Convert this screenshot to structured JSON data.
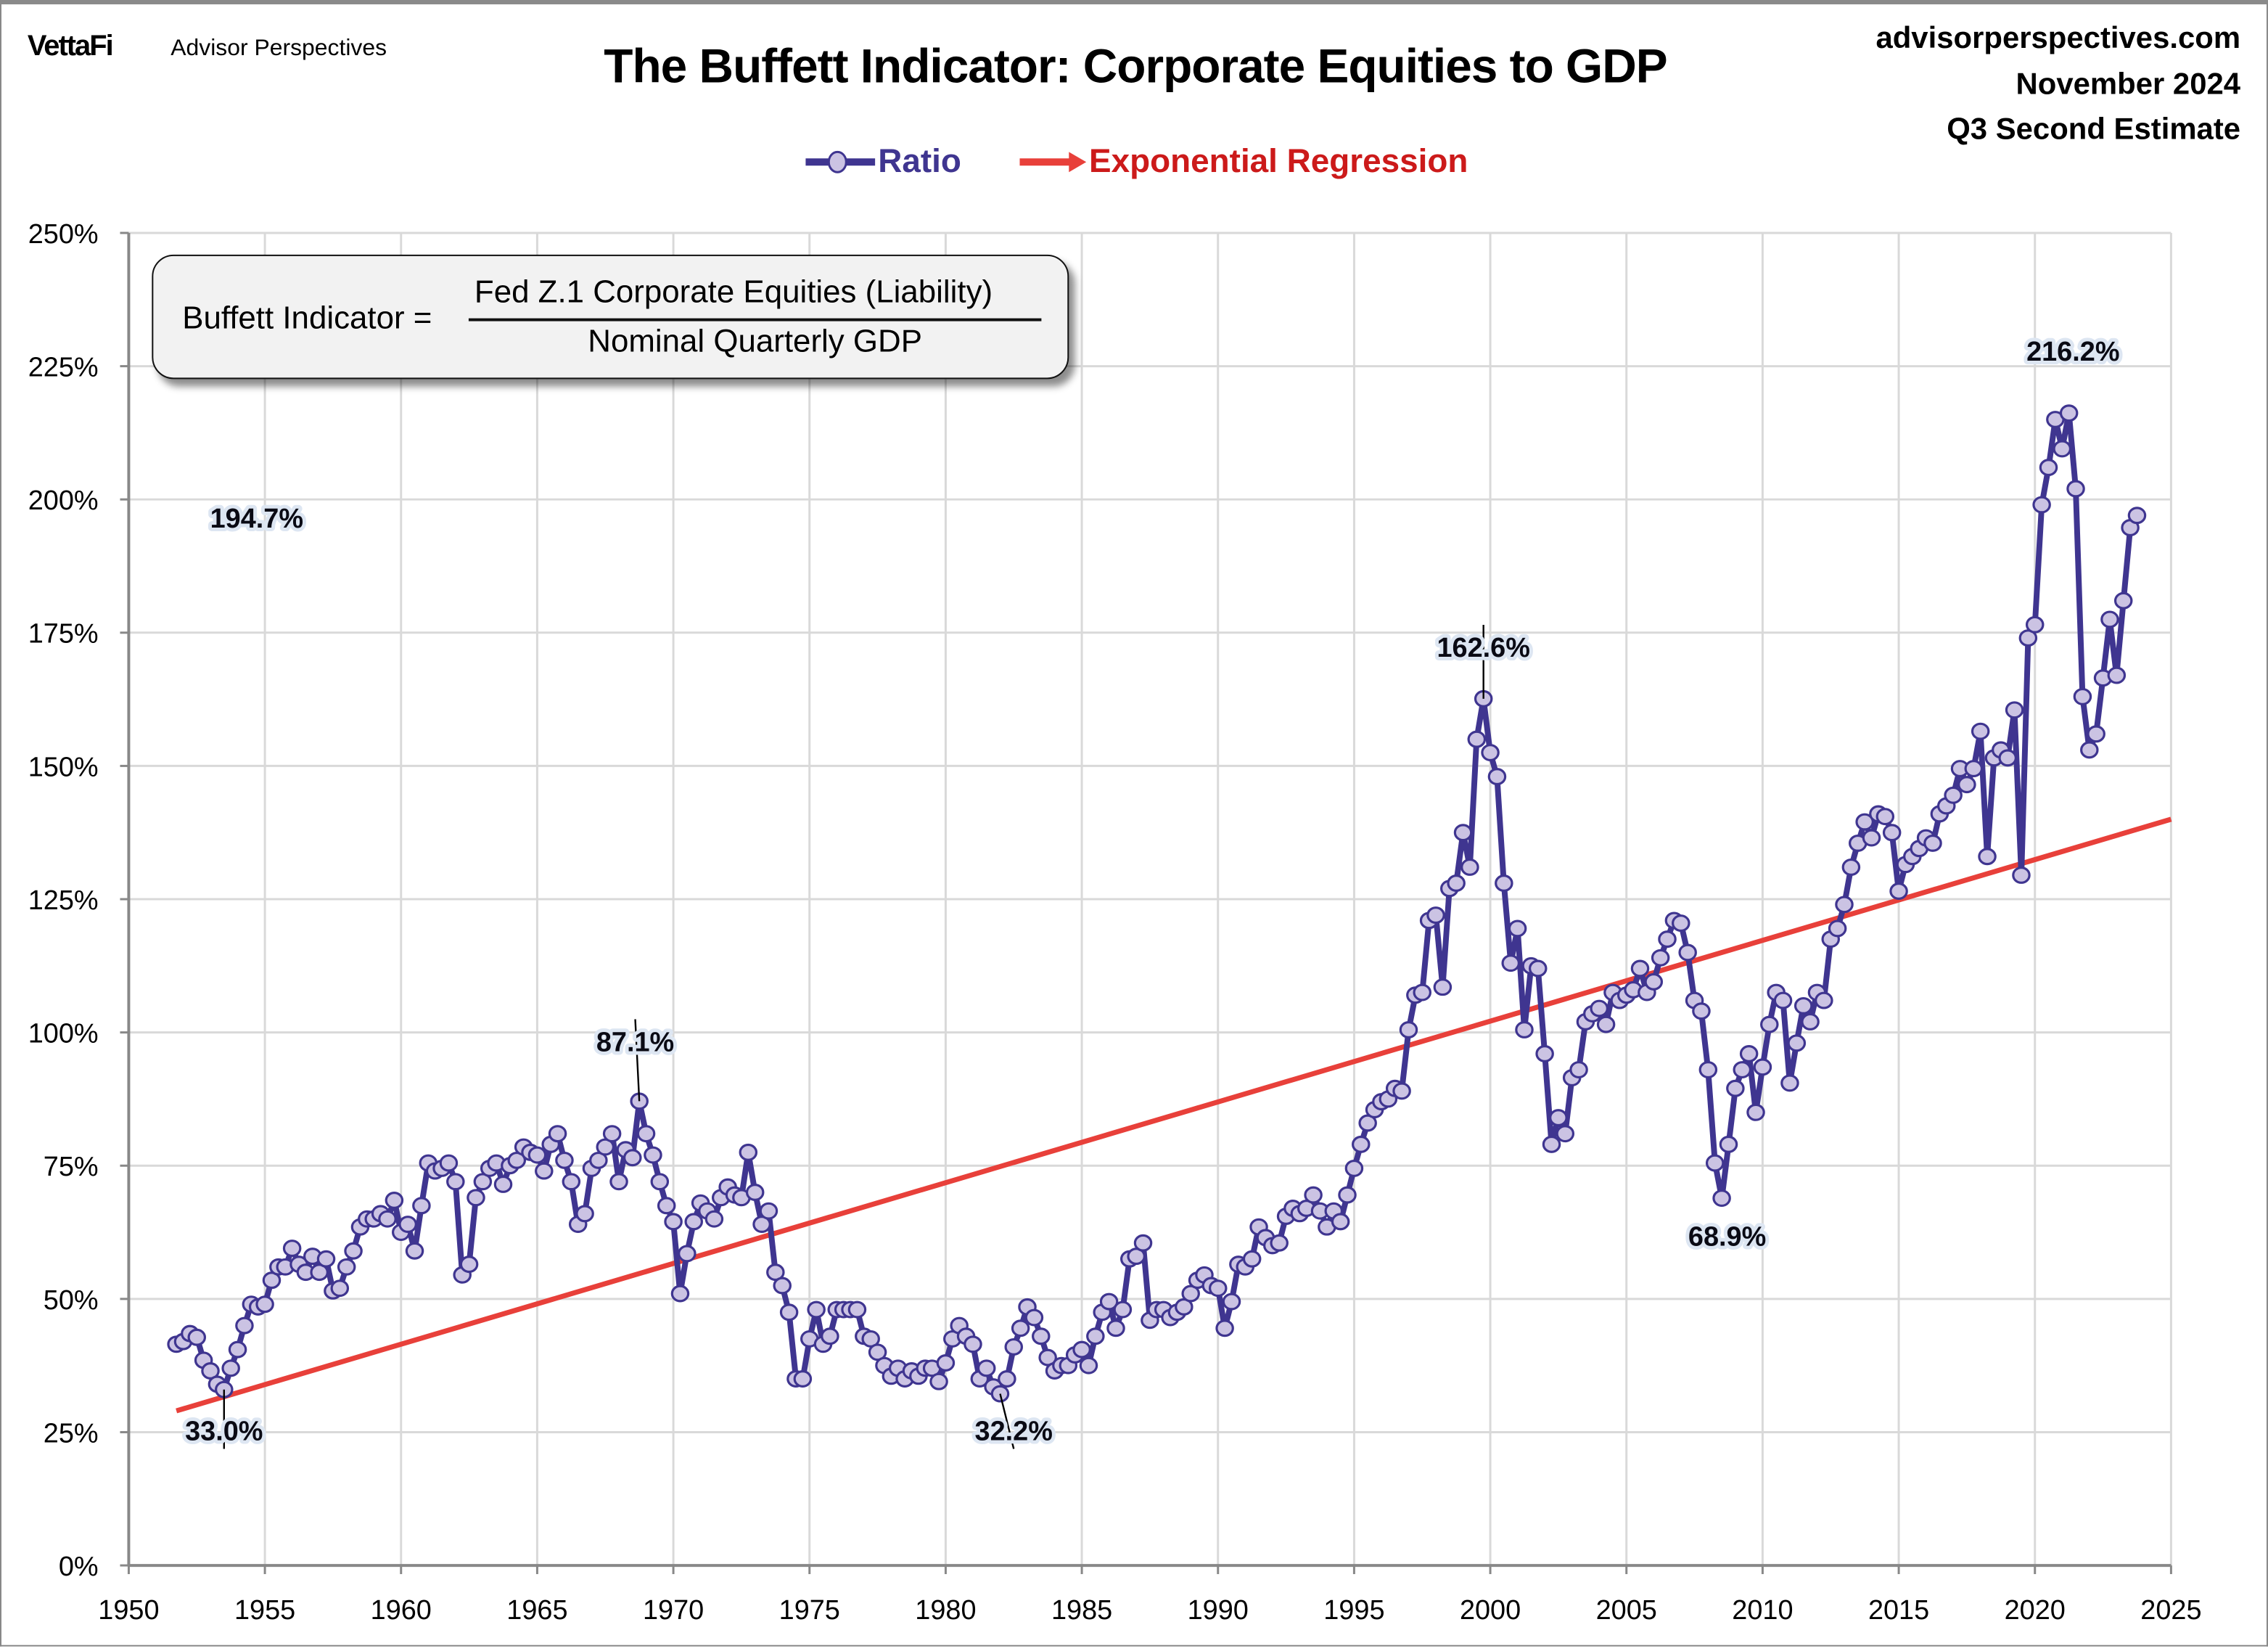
{
  "header": {
    "brand": "VettaFi",
    "brand_sub": "Advisor Perspectives",
    "title": "The Buffett Indicator: Corporate Equities to GDP",
    "site": "advisorperspectives.com",
    "date": "November 2024",
    "estimate": "Q3 Second Estimate"
  },
  "legend": {
    "ratio": "Ratio",
    "regression": "Exponential Regression"
  },
  "formula": {
    "lhs": "Buffett Indicator =",
    "numerator": "Fed Z.1 Corporate Equities (Liability)",
    "denominator": "Nominal Quarterly GDP"
  },
  "colors": {
    "ratio_line": "#3f3590",
    "ratio_marker": "#cbc3e3",
    "regression": "#e8403a",
    "ratio_text": "#3f3590",
    "regression_text": "#cc1a1a"
  },
  "chart_data": {
    "type": "line",
    "title": "The Buffett Indicator: Corporate Equities to GDP",
    "xlim": [
      1950,
      2025
    ],
    "ylim": [
      0,
      250
    ],
    "grid": true,
    "legend_placement": "top-center",
    "x_ticks": [
      "1950",
      "1955",
      "1960",
      "1965",
      "1970",
      "1975",
      "1980",
      "1985",
      "1990",
      "1995",
      "2000",
      "2005",
      "2010",
      "2015",
      "2020",
      "2025"
    ],
    "y_ticks": [
      "0%",
      "25%",
      "50%",
      "75%",
      "100%",
      "125%",
      "150%",
      "175%",
      "200%",
      "225%",
      "250%"
    ],
    "series": [
      {
        "name": "Ratio",
        "unit": "%",
        "quarterly": {
          "1951": [
            null,
            null,
            null,
            41.5
          ],
          "1952": [
            42,
            43.5,
            42.8,
            38.5
          ],
          "1953": [
            36.5,
            34,
            33.0,
            37
          ],
          "1954": [
            40.5,
            45,
            49,
            48.5
          ],
          "1955": [
            49,
            53.5,
            56,
            56
          ],
          "1956": [
            59.5,
            56.5,
            55,
            58
          ],
          "1957": [
            55,
            57.5,
            51.5,
            52
          ],
          "1958": [
            56,
            59,
            63.5,
            65
          ],
          "1959": [
            65,
            66,
            65,
            68.5
          ],
          "1960": [
            62.5,
            64,
            59,
            67.5
          ],
          "1961": [
            75.5,
            74,
            74.5,
            75.5
          ],
          "1962": [
            72,
            54.5,
            56.5,
            69
          ],
          "1963": [
            72,
            74.5,
            75.5,
            71.5
          ],
          "1964": [
            75,
            76,
            78.5,
            77.5
          ],
          "1965": [
            77,
            74,
            79,
            81
          ],
          "1966": [
            76,
            72,
            64,
            66
          ],
          "1967": [
            74.5,
            76,
            78.5,
            81
          ],
          "1968": [
            72,
            78,
            76.5,
            87.1
          ],
          "1969": [
            81,
            77,
            72,
            67.5
          ],
          "1970": [
            64.5,
            51,
            58.5,
            64.5
          ],
          "1971": [
            68,
            66.5,
            65,
            69
          ],
          "1972": [
            71,
            69.5,
            69,
            77.5
          ],
          "1973": [
            70,
            64,
            66.5,
            55
          ],
          "1974": [
            52.5,
            47.5,
            35,
            35
          ],
          "1975": [
            42.5,
            48,
            41.5,
            43
          ],
          "1976": [
            48,
            48,
            48,
            48
          ],
          "1977": [
            43,
            42.5,
            40,
            37.5
          ],
          "1978": [
            35.5,
            37,
            35,
            36.5
          ],
          "1979": [
            35.5,
            37,
            37,
            34.5
          ],
          "1980": [
            38,
            42.5,
            45,
            43
          ],
          "1981": [
            41.5,
            35,
            37,
            33.5
          ],
          "1982": [
            32.2,
            35,
            41,
            44.5
          ],
          "1983": [
            48.5,
            46.5,
            43,
            39
          ],
          "1984": [
            36.5,
            37.5,
            37.5,
            39.5
          ],
          "1985": [
            40.5,
            37.5,
            43,
            47.5
          ],
          "1986": [
            49.5,
            44.5,
            48,
            57.5
          ],
          "1987": [
            58,
            60.5,
            46,
            48
          ],
          "1988": [
            48,
            46.5,
            47.5,
            48.5
          ],
          "1989": [
            51,
            53.5,
            54.5,
            52.5
          ],
          "1990": [
            52,
            44.5,
            49.5,
            56.5
          ],
          "1991": [
            56,
            57.5,
            63.5,
            61.5
          ],
          "1992": [
            60,
            60.5,
            65.5,
            67
          ],
          "1993": [
            66,
            67,
            69.5,
            66.5
          ],
          "1994": [
            63.5,
            66.5,
            64.5,
            69.5
          ],
          "1995": [
            74.5,
            79,
            83,
            85.5
          ],
          "1996": [
            87,
            87.5,
            89.5,
            89
          ],
          "1997": [
            100.5,
            107,
            107.5,
            121
          ],
          "1998": [
            122,
            108.5,
            127,
            128
          ],
          "1999": [
            137.5,
            131,
            155,
            162.6
          ],
          "2000": [
            152.5,
            148,
            128,
            113
          ],
          "2001": [
            119.5,
            100.5,
            112.5,
            112
          ],
          "2002": [
            96,
            79,
            84,
            81
          ],
          "2003": [
            91.5,
            93,
            102,
            103.5
          ],
          "2004": [
            104.5,
            101.5,
            107.5,
            106
          ],
          "2005": [
            107,
            108,
            112,
            107.5
          ],
          "2006": [
            109.5,
            114,
            117.5,
            121
          ],
          "2007": [
            120.5,
            115,
            106,
            104
          ],
          "2008": [
            93,
            75.5,
            68.9,
            79
          ],
          "2009": [
            89.5,
            93,
            96,
            85
          ],
          "2010": [
            93.5,
            101.5,
            107.5,
            106
          ],
          "2011": [
            90.5,
            98,
            105,
            102
          ],
          "2012": [
            107.5,
            106,
            117.5,
            119.5
          ],
          "2013": [
            124,
            131,
            135.5,
            139.5
          ],
          "2014": [
            136.5,
            141,
            140.5,
            137.5
          ],
          "2015": [
            126.5,
            131.5,
            133,
            134.5
          ],
          "2016": [
            136.5,
            135.5,
            141,
            142.5
          ],
          "2017": [
            144.5,
            149.5,
            146.5,
            149.5
          ],
          "2018": [
            156.5,
            133,
            151.5,
            153
          ],
          "2019": [
            151.5,
            160.5,
            129.5,
            174
          ],
          "2020": [
            176.5,
            199,
            206,
            215
          ],
          "2021": [
            209.5,
            216.2,
            202,
            163
          ],
          "2022": [
            153,
            156,
            166.5,
            177.5
          ],
          "2023": [
            167,
            181,
            194.7,
            197
          ]
        }
      },
      {
        "name": "Exponential Regression",
        "unit": "%",
        "points": [
          [
            1951.75,
            29
          ],
          [
            2025,
            140
          ]
        ]
      }
    ],
    "annotations": [
      {
        "text": "194.7%",
        "x": 1954.7,
        "y": 194.7,
        "leader": false
      },
      {
        "text": "216.2%",
        "x": 2021.4,
        "y": 226,
        "leader": false
      },
      {
        "text": "162.6%",
        "x": 1999.75,
        "y": 170.5,
        "leader": true,
        "target": [
          1999.75,
          162.6
        ]
      },
      {
        "text": "87.1%",
        "x": 1968.6,
        "y": 96.5,
        "leader": true,
        "target": [
          1968.75,
          87.1
        ]
      },
      {
        "text": "33.0%",
        "x": 1953.5,
        "y": 23.5,
        "leader": true,
        "target": [
          1953.5,
          33.0
        ]
      },
      {
        "text": "32.2%",
        "x": 1982.5,
        "y": 23.5,
        "leader": true,
        "target": [
          1982.0,
          32.2
        ]
      },
      {
        "text": "68.9%",
        "x": 2008.7,
        "y": 60,
        "leader": false
      }
    ]
  }
}
